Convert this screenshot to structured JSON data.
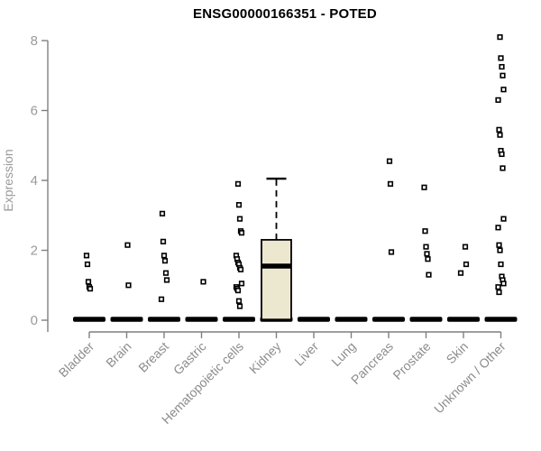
{
  "title": "ENSG00000166351 - POTED",
  "chart_data": {
    "type": "boxplot",
    "title": "ENSG00000166351 - POTED",
    "ylabel": "Expression",
    "xlabel": "",
    "ylim": [
      0,
      8
    ],
    "yticks": [
      0,
      2,
      4,
      6,
      8
    ],
    "grid": false,
    "legend": "none",
    "categories": [
      "Bladder",
      "Brain",
      "Breast",
      "Gastric",
      "Hematopoietic cells",
      "Kidney",
      "Liver",
      "Lung",
      "Pancreas",
      "Prostate",
      "Skin",
      "Unknown / Other"
    ],
    "series": [
      {
        "category": "Bladder",
        "zero_bar": true,
        "points": [
          1.85,
          1.6,
          1.1,
          0.95,
          0.9
        ]
      },
      {
        "category": "Brain",
        "zero_bar": true,
        "points": [
          2.15,
          1.0
        ]
      },
      {
        "category": "Breast",
        "zero_bar": true,
        "points": [
          3.05,
          2.25,
          1.85,
          1.7,
          1.35,
          1.15,
          0.6
        ]
      },
      {
        "category": "Gastric",
        "zero_bar": true,
        "points": [
          1.1
        ]
      },
      {
        "category": "Hematopoietic cells",
        "zero_bar": true,
        "points": [
          3.9,
          3.3,
          2.9,
          2.55,
          2.5,
          1.85,
          1.75,
          1.65,
          1.6,
          1.5,
          1.45,
          1.05,
          0.95,
          0.9,
          0.85,
          0.55,
          0.4
        ]
      },
      {
        "category": "Kidney",
        "zero_bar": true,
        "box": {
          "lower": 0.02,
          "q1": 0.02,
          "median": 1.55,
          "q3": 2.3,
          "upper_whisker": 4.05
        },
        "points": []
      },
      {
        "category": "Liver",
        "zero_bar": true,
        "points": []
      },
      {
        "category": "Lung",
        "zero_bar": true,
        "points": []
      },
      {
        "category": "Pancreas",
        "zero_bar": true,
        "points": [
          4.55,
          3.9,
          1.95
        ]
      },
      {
        "category": "Prostate",
        "zero_bar": true,
        "points": [
          3.8,
          2.55,
          2.1,
          1.9,
          1.75,
          1.3
        ]
      },
      {
        "category": "Skin",
        "zero_bar": true,
        "points": [
          2.1,
          1.6,
          1.35
        ]
      },
      {
        "category": "Unknown / Other",
        "zero_bar": true,
        "points": [
          8.1,
          7.5,
          7.25,
          7.0,
          6.6,
          6.3,
          5.45,
          5.3,
          4.85,
          4.75,
          4.35,
          2.9,
          2.65,
          2.15,
          2.0,
          1.6,
          1.25,
          1.15,
          1.05,
          0.95,
          0.8
        ]
      }
    ],
    "colors": {
      "background": "#ffffff",
      "title": "#000000",
      "axis": "#7f7f7f",
      "tick_label": "#9a9a9a",
      "category_label": "#8c8c8c",
      "ylabel_color": "#9a9a9a",
      "box_fill": "#ece7cf",
      "box_stroke": "#000000",
      "point": "#000000",
      "zero_bar": "#000000"
    }
  }
}
